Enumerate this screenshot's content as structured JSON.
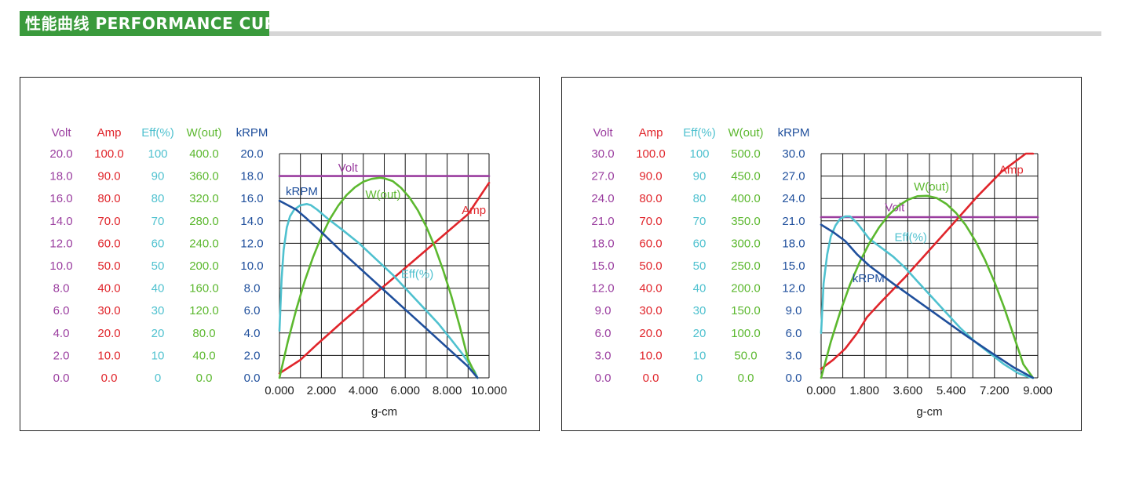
{
  "header": {
    "title": "性能曲线 PERFORMANCE CURVE"
  },
  "colors": {
    "volt": "#9a3d9f",
    "amp": "#e0252b",
    "eff": "#4fc1cf",
    "wout": "#5cb82f",
    "krpm": "#1f4f9c",
    "tick_x": "#222222",
    "grid": "#111111",
    "header_bg": "#3a9a3c"
  },
  "chart_data": [
    {
      "type": "line",
      "xlabel": "g-cm",
      "xlim": [
        0,
        10
      ],
      "x_ticks": [
        "0.000",
        "2.000",
        "4.000",
        "6.000",
        "8.000",
        "10.000"
      ],
      "grid_cols": 10,
      "grid_rows": 10,
      "axis_headers": [
        "Volt",
        "Amp",
        "Eff(%)",
        "W(out)",
        "kRPM"
      ],
      "axis_ticks": {
        "volt": [
          "20.0",
          "18.0",
          "16.0",
          "14.0",
          "12.0",
          "10.0",
          "8.0",
          "6.0",
          "4.0",
          "2.0",
          "0.0"
        ],
        "amp": [
          "100.0",
          "90.0",
          "80.0",
          "70.0",
          "60.0",
          "50.0",
          "40.0",
          "30.0",
          "20.0",
          "10.0",
          "0.0"
        ],
        "eff": [
          "100",
          "90",
          "80",
          "70",
          "60",
          "50",
          "40",
          "30",
          "20",
          "10",
          "0"
        ],
        "wout": [
          "400.0",
          "360.0",
          "320.0",
          "280.0",
          "240.0",
          "200.0",
          "160.0",
          "120.0",
          "80.0",
          "40.0",
          "0.0"
        ],
        "krpm": [
          "20.0",
          "18.0",
          "16.0",
          "14.0",
          "12.0",
          "10.0",
          "8.0",
          "6.0",
          "4.0",
          "2.0",
          "0.0"
        ]
      },
      "axis_max": {
        "volt": 20,
        "amp": 100,
        "eff": 100,
        "wout": 400,
        "krpm": 20
      },
      "series": [
        {
          "name": "Volt",
          "key": "volt",
          "x": [
            0,
            10
          ],
          "y": [
            18,
            18
          ],
          "label_at": [
            2.8,
            18.4
          ]
        },
        {
          "name": "Amp",
          "key": "amp",
          "x": [
            0,
            1.0,
            1.8,
            3.0,
            4.5,
            6.0,
            7.5,
            9.0,
            10.0
          ],
          "y": [
            2,
            8,
            15,
            25,
            37,
            49,
            61,
            73,
            87
          ],
          "label_at": [
            8.7,
            73.0
          ]
        },
        {
          "name": "Eff(%)",
          "key": "eff",
          "x": [
            0,
            0.1,
            0.2,
            0.35,
            0.5,
            0.7,
            1.0,
            1.3,
            1.5,
            1.8,
            2.3,
            3.0,
            3.8,
            4.6,
            5.4,
            6.2,
            7.0,
            7.6,
            8.2,
            8.7,
            9.0,
            9.3,
            9.45
          ],
          "y": [
            21,
            44,
            57,
            67,
            72,
            75,
            77,
            77.5,
            77,
            75,
            71,
            66,
            60,
            53,
            46,
            38,
            30,
            24,
            17,
            11,
            7,
            3,
            0
          ],
          "label_at": [
            5.8,
            44.5
          ]
        },
        {
          "name": "W(out)",
          "key": "wout",
          "x": [
            0,
            0.4,
            0.8,
            1.2,
            1.6,
            2.0,
            2.4,
            2.8,
            3.2,
            3.6,
            4.0,
            4.4,
            4.8,
            5.0,
            5.4,
            5.8,
            6.2,
            6.6,
            7.0,
            7.4,
            7.8,
            8.2,
            8.6,
            9.0,
            9.4,
            9.45
          ],
          "y": [
            0,
            65,
            122,
            172,
            215,
            252,
            283,
            307,
            326,
            340,
            350,
            355,
            357,
            356,
            351,
            339,
            322,
            299,
            270,
            235,
            193,
            146,
            92,
            33,
            2,
            0
          ],
          "label_at": [
            4.1,
            320.0
          ]
        },
        {
          "name": "kRPM",
          "key": "krpm",
          "x": [
            0,
            0.8,
            1.3,
            2.0,
            3.0,
            4.0,
            5.0,
            6.0,
            7.0,
            8.0,
            9.0,
            9.45
          ],
          "y": [
            15.8,
            15.0,
            14.2,
            13.0,
            11.2,
            9.5,
            7.8,
            6.1,
            4.4,
            2.7,
            1.0,
            0
          ],
          "label_at": [
            0.3,
            16.3
          ]
        }
      ]
    },
    {
      "type": "line",
      "xlabel": "g-cm",
      "xlim": [
        0,
        9
      ],
      "x_ticks": [
        "0.000",
        "1.800",
        "3.600",
        "5.400",
        "7.200",
        "9.000"
      ],
      "grid_cols": 10,
      "grid_rows": 10,
      "axis_headers": [
        "Volt",
        "Amp",
        "Eff(%)",
        "W(out)",
        "kRPM"
      ],
      "axis_ticks": {
        "volt": [
          "30.0",
          "27.0",
          "24.0",
          "21.0",
          "18.0",
          "15.0",
          "12.0",
          "9.0",
          "6.0",
          "3.0",
          "0.0"
        ],
        "amp": [
          "100.0",
          "90.0",
          "80.0",
          "70.0",
          "60.0",
          "50.0",
          "40.0",
          "30.0",
          "20.0",
          "10.0",
          "0.0"
        ],
        "eff": [
          "100",
          "90",
          "80",
          "70",
          "60",
          "50",
          "40",
          "30",
          "20",
          "10",
          "0"
        ],
        "wout": [
          "500.0",
          "450.0",
          "400.0",
          "350.0",
          "300.0",
          "250.0",
          "200.0",
          "150.0",
          "100.0",
          "50.0",
          "0.0"
        ],
        "krpm": [
          "30.0",
          "27.0",
          "24.0",
          "21.0",
          "18.0",
          "15.0",
          "12.0",
          "9.0",
          "6.0",
          "3.0",
          "0.0"
        ]
      },
      "axis_max": {
        "volt": 30,
        "amp": 100,
        "eff": 100,
        "wout": 500,
        "krpm": 30
      },
      "series": [
        {
          "name": "Volt",
          "key": "volt",
          "x": [
            0,
            9
          ],
          "y": [
            21.5,
            21.5
          ],
          "label_at": [
            2.65,
            22.3
          ]
        },
        {
          "name": "Amp",
          "key": "amp",
          "x": [
            0,
            0.5,
            1.0,
            1.5,
            1.9,
            2.5,
            3.5,
            4.5,
            5.5,
            6.5,
            7.5,
            8.5,
            8.8
          ],
          "y": [
            4,
            8,
            13,
            20,
            27,
            34,
            45,
            57,
            69,
            81,
            92,
            100,
            100
          ],
          "label_at": [
            7.4,
            91.0
          ]
        },
        {
          "name": "Eff(%)",
          "key": "eff",
          "x": [
            0,
            0.1,
            0.25,
            0.4,
            0.6,
            0.8,
            1.0,
            1.2,
            1.5,
            2.0,
            2.5,
            3.0,
            3.5,
            4.0,
            4.6,
            5.2,
            5.8,
            6.4,
            7.0,
            7.6,
            8.2,
            8.6,
            8.8
          ],
          "y": [
            20,
            42,
            55,
            63,
            68,
            71,
            72,
            72,
            69,
            62,
            58,
            54,
            49,
            43,
            36,
            29,
            22,
            16,
            11,
            6,
            2,
            0.5,
            0
          ],
          "label_at": [
            3.05,
            61.0
          ]
        },
        {
          "name": "W(out)",
          "key": "wout",
          "x": [
            0,
            0.4,
            0.8,
            1.2,
            1.6,
            2.0,
            2.4,
            2.8,
            3.2,
            3.6,
            4.0,
            4.4,
            4.8,
            5.2,
            5.6,
            6.0,
            6.4,
            6.8,
            7.2,
            7.6,
            8.0,
            8.4,
            8.8
          ],
          "y": [
            0,
            80,
            148,
            208,
            258,
            300,
            335,
            363,
            383,
            397,
            405,
            406,
            401,
            388,
            368,
            341,
            306,
            264,
            214,
            157,
            94,
            30,
            0
          ],
          "label_at": [
            3.85,
            418.0
          ]
        },
        {
          "name": "kRPM",
          "key": "krpm",
          "x": [
            0,
            0.5,
            1.0,
            1.5,
            2.0,
            3.0,
            4.0,
            5.0,
            6.0,
            7.0,
            8.0,
            8.8
          ],
          "y": [
            20.5,
            19.5,
            18.3,
            16.5,
            15.0,
            12.6,
            10.3,
            8.0,
            5.7,
            3.5,
            1.4,
            0
          ],
          "label_at": [
            1.3,
            12.8
          ]
        }
      ]
    }
  ]
}
